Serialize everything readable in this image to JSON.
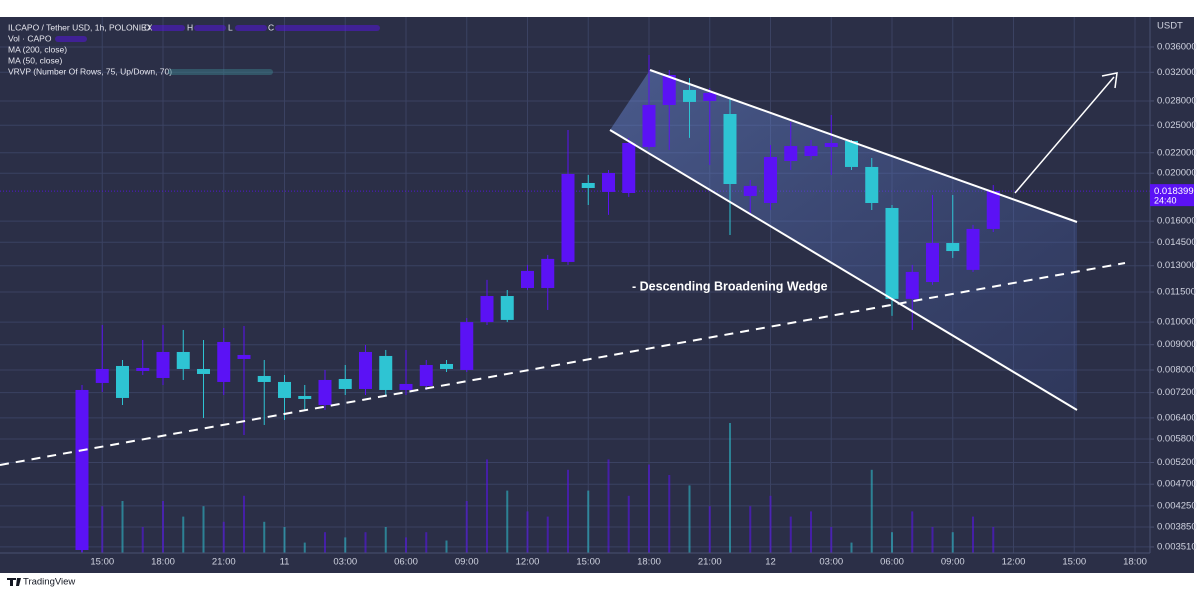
{
  "chart_data": {
    "type": "candlestick",
    "title": "ILCAPO / Tether USD, 1h, POLONIEX",
    "ohlc_labels": [
      "O",
      "H",
      "L",
      "C"
    ],
    "indicators": [
      "Vol · CAPO",
      "MA (200, close)",
      "MA (50, close)",
      "VRVP (Number Of Rows, 75, Up/Down, 70)"
    ],
    "y_axis_label": "USDT",
    "annotation": "- Descending Broadening Wedge",
    "last_price": 0.018399,
    "countdown": "24:40",
    "footer": "TradingView",
    "up_color": "#5b12f5",
    "down_color": "#2ec4d3",
    "log_scale": true,
    "grid": true,
    "ylim": [
      0.003412,
      0.0412
    ],
    "yticks": [
      {
        "value": 0.036,
        "label": "0.036000"
      },
      {
        "value": 0.032,
        "label": "0.032000"
      },
      {
        "value": 0.028,
        "label": "0.028000"
      },
      {
        "value": 0.025,
        "label": "0.025000"
      },
      {
        "value": 0.022,
        "label": "0.022000"
      },
      {
        "value": 0.02,
        "label": "0.020000"
      },
      {
        "value": 0.016,
        "label": "0.016000"
      },
      {
        "value": 0.0145,
        "label": "0.014500"
      },
      {
        "value": 0.013,
        "label": "0.013000"
      },
      {
        "value": 0.0115,
        "label": "0.011500"
      },
      {
        "value": 0.01,
        "label": "0.010000"
      },
      {
        "value": 0.009,
        "label": "0.009000"
      },
      {
        "value": 0.008,
        "label": "0.008000"
      },
      {
        "value": 0.0072,
        "label": "0.007200"
      },
      {
        "value": 0.0064,
        "label": "0.006400"
      },
      {
        "value": 0.0058,
        "label": "0.005800"
      },
      {
        "value": 0.0052,
        "label": "0.005200"
      },
      {
        "value": 0.0047,
        "label": "0.004700"
      },
      {
        "value": 0.00425,
        "label": "0.004250"
      },
      {
        "value": 0.00385,
        "label": "0.003850"
      },
      {
        "value": 0.00351,
        "label": "0.003510"
      }
    ],
    "categories": [
      null,
      "15:00",
      null,
      null,
      "18:00",
      null,
      null,
      "21:00",
      null,
      null,
      "11",
      null,
      null,
      "03:00",
      null,
      null,
      "06:00",
      null,
      null,
      "09:00",
      null,
      null,
      "12:00",
      null,
      null,
      "15:00",
      null,
      null,
      "18:00",
      null,
      null,
      "21:00",
      null,
      null,
      "12",
      null,
      null,
      "03:00",
      null,
      null,
      "06:00",
      null,
      null,
      "09:00",
      null,
      null,
      "12:00",
      null,
      null,
      "15:00",
      null,
      null,
      "18:00"
    ],
    "open": [
      0.00346,
      0.007531,
      0.008151,
      0.007964,
      0.007708,
      0.0087,
      0.008038,
      0.007566,
      0.008421,
      0.00778,
      0.007566,
      0.007088,
      0.006797,
      0.007672,
      0.007323,
      0.00854,
      0.007289,
      0.007426,
      0.008227,
      0.008001,
      0.01,
      0.01129,
      0.01172,
      0.01172,
      0.01323,
      0.01911,
      0.01833,
      0.01824,
      0.0226,
      0.02748,
      0.02947,
      0.028,
      0.02635,
      0.01799,
      0.01741,
      0.02117,
      0.02167,
      0.0226,
      0.02324,
      0.02059,
      0.01701,
      0.01114,
      0.01205,
      0.01445,
      0.01275,
      0.01543,
      null,
      null,
      null,
      null,
      null,
      null,
      null
    ],
    "high": [
      0.007461,
      0.009865,
      0.008382,
      0.0092,
      0.009865,
      0.009639,
      0.0092,
      0.009729,
      0.00982,
      0.008382,
      0.007817,
      0.007461,
      0.008001,
      0.008189,
      0.008988,
      0.008782,
      0.008782,
      0.008382,
      0.008382,
      0.01019,
      0.01217,
      0.01161,
      0.01305,
      0.01367,
      0.02446,
      0.01984,
      0.0203,
      0.02357,
      0.03468,
      0.03234,
      0.03116,
      0.02974,
      0.02839,
      0.01938,
      0.02281,
      0.02539,
      0.02335,
      0.02623,
      0.02335,
      0.02147,
      0.01725,
      0.01305,
      0.01807,
      0.01807,
      0.01572,
      0.01893,
      null,
      null,
      null,
      null,
      null,
      null,
      null
    ],
    "low": [
      0.003428,
      0.007222,
      0.006797,
      0.007817,
      0.007461,
      0.007637,
      0.006398,
      0.007121,
      0.005911,
      0.006193,
      0.006339,
      0.006641,
      0.006641,
      0.007121,
      0.007121,
      0.007121,
      0.007121,
      0.007289,
      0.007927,
      0.007927,
      0.009865,
      0.01,
      0.01161,
      0.01058,
      0.01305,
      0.01725,
      0.01647,
      0.01791,
      0.02229,
      0.02229,
      0.02357,
      0.02078,
      0.015,
      0.01647,
      0.01685,
      0.0203,
      0.02127,
      0.01984,
      0.0203,
      0.01685,
      0.01029,
      0.009639,
      0.01189,
      0.01348,
      0.01263,
      0.01521,
      null,
      null,
      null,
      null,
      null,
      null,
      null
    ],
    "close": [
      0.007289,
      0.008038,
      0.007023,
      0.008076,
      0.0087,
      0.008038,
      0.007853,
      0.009115,
      0.00858,
      0.007566,
      0.007023,
      0.00699,
      0.007637,
      0.007323,
      0.0087,
      0.007289,
      0.007496,
      0.008189,
      0.008038,
      0.01,
      0.01129,
      0.0101,
      0.01269,
      0.01342,
      0.01993,
      0.01867,
      0.02002,
      0.02302,
      0.02748,
      0.0316,
      0.02787,
      0.02906,
      0.01902,
      0.01885,
      0.02157,
      0.0227,
      0.0227,
      0.02302,
      0.02059,
      0.01741,
      0.01114,
      0.01263,
      0.01445,
      0.01392,
      0.01543,
      0.018399,
      null,
      null,
      null,
      null,
      null,
      null,
      null
    ],
    "volume": [
      60,
      45,
      50,
      25,
      50,
      35,
      45,
      30,
      55,
      30,
      25,
      10,
      20,
      15,
      20,
      25,
      15,
      20,
      12,
      50,
      90,
      60,
      40,
      35,
      80,
      60,
      90,
      55,
      85,
      75,
      65,
      45,
      125,
      45,
      55,
      35,
      40,
      25,
      10,
      80,
      20,
      40,
      25,
      20,
      35,
      25,
      null,
      null,
      null,
      null,
      null,
      null,
      null
    ]
  }
}
